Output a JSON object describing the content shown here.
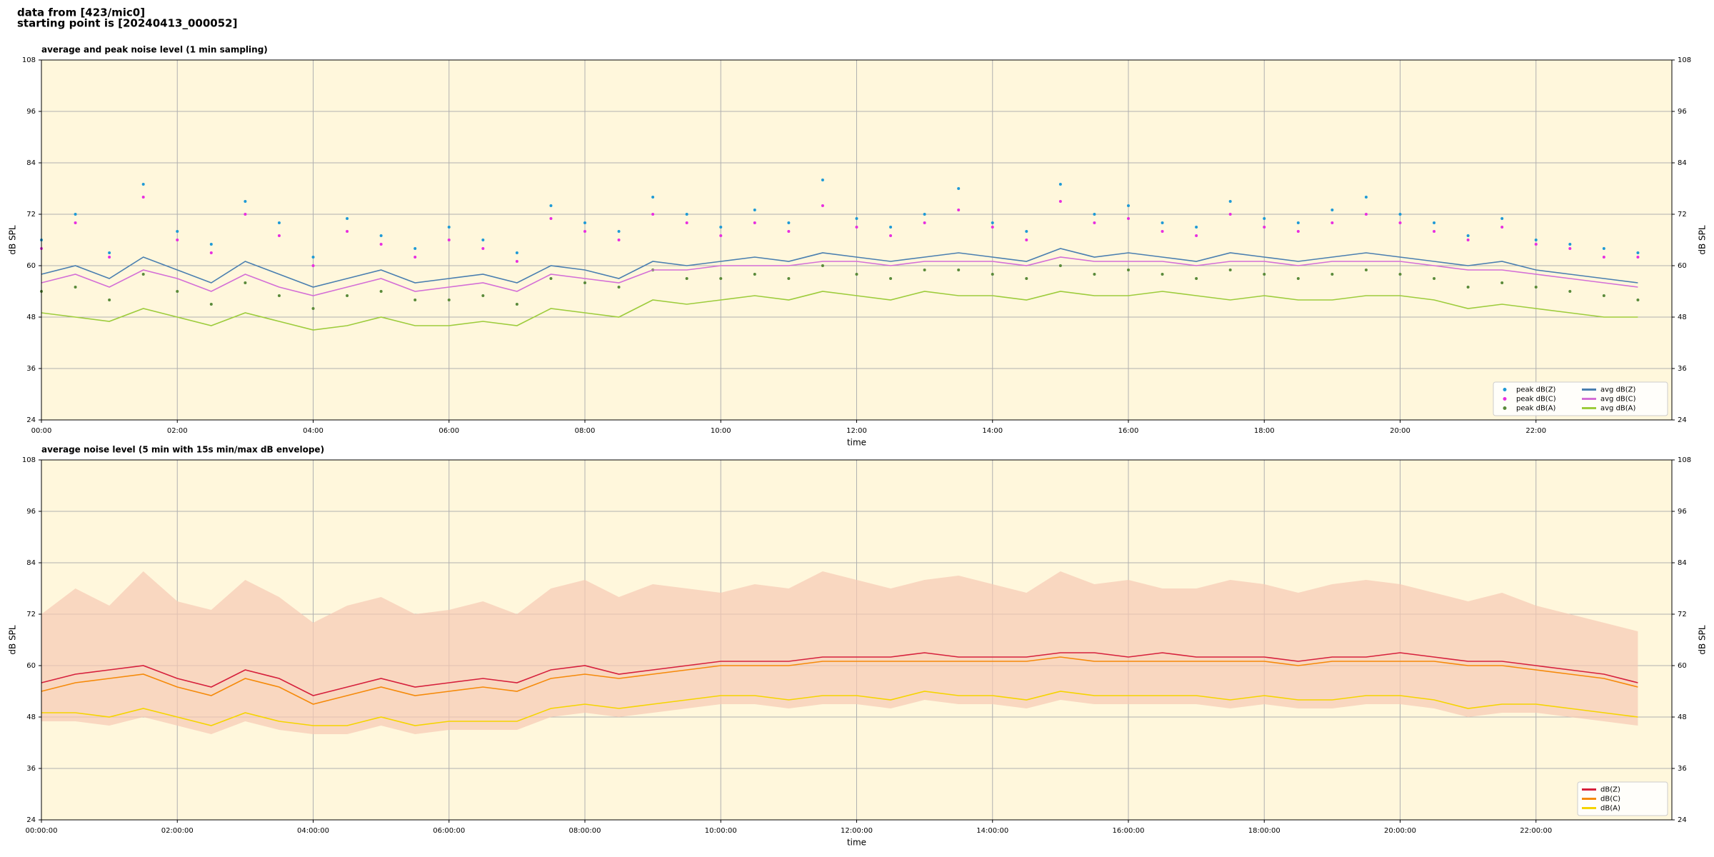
{
  "header": {
    "lines": [
      "data from [423/mic0]",
      "starting point is [20240413_000052]"
    ]
  },
  "chart_data": [
    {
      "type": "line",
      "title": "average and peak noise level (1 min sampling)",
      "x_label": "time",
      "y_label": "dB SPL",
      "background": "#fff7dc",
      "grid": true,
      "legend": "lower right",
      "legend_columns": 2,
      "xlim": [
        0,
        24
      ],
      "ylim": [
        24,
        108
      ],
      "yticks": [
        24,
        36,
        48,
        60,
        72,
        84,
        96,
        108
      ],
      "xticks": [
        {
          "value": 0,
          "label": "00:00"
        },
        {
          "value": 2,
          "label": "02:00"
        },
        {
          "value": 4,
          "label": "04:00"
        },
        {
          "value": 6,
          "label": "06:00"
        },
        {
          "value": 8,
          "label": "08:00"
        },
        {
          "value": 10,
          "label": "10:00"
        },
        {
          "value": 12,
          "label": "12:00"
        },
        {
          "value": 14,
          "label": "14:00"
        },
        {
          "value": 16,
          "label": "16:00"
        },
        {
          "value": 18,
          "label": "18:00"
        },
        {
          "value": 20,
          "label": "20:00"
        },
        {
          "value": 22,
          "label": "22:00"
        }
      ],
      "x": [
        0,
        0.5,
        1,
        1.5,
        2,
        2.5,
        3,
        3.5,
        4,
        4.5,
        5,
        5.5,
        6,
        6.5,
        7,
        7.5,
        8,
        8.5,
        9,
        9.5,
        10,
        10.5,
        11,
        11.5,
        12,
        12.5,
        13,
        13.5,
        14,
        14.5,
        15,
        15.5,
        16,
        16.5,
        17,
        17.5,
        18,
        18.5,
        19,
        19.5,
        20,
        20.5,
        21,
        21.5,
        22,
        22.5,
        23,
        23.5
      ],
      "series": [
        {
          "name": "peak dB(Z)",
          "style": "dots",
          "color": "#1f9ad6",
          "values": [
            66,
            72,
            63,
            79,
            68,
            65,
            75,
            70,
            62,
            71,
            67,
            64,
            69,
            66,
            63,
            74,
            70,
            68,
            76,
            72,
            69,
            73,
            70,
            80,
            71,
            69,
            72,
            78,
            70,
            68,
            79,
            72,
            74,
            70,
            69,
            75,
            71,
            70,
            73,
            76,
            72,
            70,
            67,
            71,
            66,
            65,
            64,
            63
          ]
        },
        {
          "name": "peak dB(C)",
          "style": "dots",
          "color": "#e82ee0",
          "values": [
            64,
            70,
            62,
            76,
            66,
            63,
            72,
            67,
            60,
            68,
            65,
            62,
            66,
            64,
            61,
            71,
            68,
            66,
            72,
            70,
            67,
            70,
            68,
            74,
            69,
            67,
            70,
            73,
            69,
            66,
            75,
            70,
            71,
            68,
            67,
            72,
            69,
            68,
            70,
            72,
            70,
            68,
            66,
            69,
            65,
            64,
            62,
            62
          ]
        },
        {
          "name": "peak dB(A)",
          "style": "dots",
          "color": "#5a8a3a",
          "values": [
            54,
            55,
            52,
            58,
            54,
            51,
            56,
            53,
            50,
            53,
            54,
            52,
            52,
            53,
            51,
            57,
            56,
            55,
            59,
            57,
            57,
            58,
            57,
            60,
            58,
            57,
            59,
            59,
            58,
            57,
            60,
            58,
            59,
            58,
            57,
            59,
            58,
            57,
            58,
            59,
            58,
            57,
            55,
            56,
            55,
            54,
            53,
            52
          ]
        },
        {
          "name": "avg dB(Z)",
          "style": "line",
          "color": "#4a7fb0",
          "values": [
            58,
            60,
            57,
            62,
            59,
            56,
            61,
            58,
            55,
            57,
            59,
            56,
            57,
            58,
            56,
            60,
            59,
            57,
            61,
            60,
            61,
            62,
            61,
            63,
            62,
            61,
            62,
            63,
            62,
            61,
            64,
            62,
            63,
            62,
            61,
            63,
            62,
            61,
            62,
            63,
            62,
            61,
            60,
            61,
            59,
            58,
            57,
            56
          ]
        },
        {
          "name": "avg dB(C)",
          "style": "line",
          "color": "#d46fd6",
          "values": [
            56,
            58,
            55,
            59,
            57,
            54,
            58,
            55,
            53,
            55,
            57,
            54,
            55,
            56,
            54,
            58,
            57,
            56,
            59,
            59,
            60,
            60,
            60,
            61,
            61,
            60,
            61,
            61,
            61,
            60,
            62,
            61,
            61,
            61,
            60,
            61,
            61,
            60,
            61,
            61,
            61,
            60,
            59,
            59,
            58,
            57,
            56,
            55
          ]
        },
        {
          "name": "avg dB(A)",
          "style": "line",
          "color": "#9dcc3c",
          "values": [
            49,
            48,
            47,
            50,
            48,
            46,
            49,
            47,
            45,
            46,
            48,
            46,
            46,
            47,
            46,
            50,
            49,
            48,
            52,
            51,
            52,
            53,
            52,
            54,
            53,
            52,
            54,
            53,
            53,
            52,
            54,
            53,
            53,
            54,
            53,
            52,
            53,
            52,
            52,
            53,
            53,
            52,
            50,
            51,
            50,
            49,
            48,
            48
          ]
        }
      ]
    },
    {
      "type": "line",
      "title": "average noise level (5 min with 15s min/max dB envelope)",
      "x_label": "time",
      "y_label": "dB SPL",
      "background": "#fff7dc",
      "grid": true,
      "legend": "lower right",
      "legend_columns": 1,
      "xlim": [
        0,
        24
      ],
      "ylim": [
        24,
        108
      ],
      "yticks": [
        24,
        36,
        48,
        60,
        72,
        84,
        96,
        108
      ],
      "xticks": [
        {
          "value": 0,
          "label": "00:00:00"
        },
        {
          "value": 2,
          "label": "02:00:00"
        },
        {
          "value": 4,
          "label": "04:00:00"
        },
        {
          "value": 6,
          "label": "06:00:00"
        },
        {
          "value": 8,
          "label": "08:00:00"
        },
        {
          "value": 10,
          "label": "10:00:00"
        },
        {
          "value": 12,
          "label": "12:00:00"
        },
        {
          "value": 14,
          "label": "14:00:00"
        },
        {
          "value": 16,
          "label": "16:00:00"
        },
        {
          "value": 18,
          "label": "18:00:00"
        },
        {
          "value": 20,
          "label": "20:00:00"
        },
        {
          "value": 22,
          "label": "22:00:00"
        }
      ],
      "x": [
        0,
        0.5,
        1,
        1.5,
        2,
        2.5,
        3,
        3.5,
        4,
        4.5,
        5,
        5.5,
        6,
        6.5,
        7,
        7.5,
        8,
        8.5,
        9,
        9.5,
        10,
        10.5,
        11,
        11.5,
        12,
        12.5,
        13,
        13.5,
        14,
        14.5,
        15,
        15.5,
        16,
        16.5,
        17,
        17.5,
        18,
        18.5,
        19,
        19.5,
        20,
        20.5,
        21,
        21.5,
        22,
        22.5,
        23,
        23.5
      ],
      "envelope": {
        "color": "#f7c9b4",
        "low": [
          47,
          47,
          46,
          48,
          46,
          44,
          47,
          45,
          44,
          44,
          46,
          44,
          45,
          45,
          45,
          48,
          49,
          48,
          49,
          50,
          51,
          51,
          50,
          51,
          51,
          50,
          52,
          51,
          51,
          50,
          52,
          51,
          51,
          51,
          51,
          50,
          51,
          50,
          50,
          51,
          51,
          50,
          48,
          49,
          49,
          48,
          47,
          46
        ],
        "high": [
          72,
          78,
          74,
          82,
          75,
          73,
          80,
          76,
          70,
          74,
          76,
          72,
          73,
          75,
          72,
          78,
          80,
          76,
          79,
          78,
          77,
          79,
          78,
          82,
          80,
          78,
          80,
          81,
          79,
          77,
          82,
          79,
          80,
          78,
          78,
          80,
          79,
          77,
          79,
          80,
          79,
          77,
          75,
          77,
          74,
          72,
          70,
          68
        ]
      },
      "series": [
        {
          "name": "dB(Z)",
          "style": "line",
          "color": "#d6203c",
          "values": [
            56,
            58,
            59,
            60,
            57,
            55,
            59,
            57,
            53,
            55,
            57,
            55,
            56,
            57,
            56,
            59,
            60,
            58,
            59,
            60,
            61,
            61,
            61,
            62,
            62,
            62,
            63,
            62,
            62,
            62,
            63,
            63,
            62,
            63,
            62,
            62,
            62,
            61,
            62,
            62,
            63,
            62,
            61,
            61,
            60,
            59,
            58,
            56
          ]
        },
        {
          "name": "dB(C)",
          "style": "line",
          "color": "#f58a0a",
          "values": [
            54,
            56,
            57,
            58,
            55,
            53,
            57,
            55,
            51,
            53,
            55,
            53,
            54,
            55,
            54,
            57,
            58,
            57,
            58,
            59,
            60,
            60,
            60,
            61,
            61,
            61,
            61,
            61,
            61,
            61,
            62,
            61,
            61,
            61,
            61,
            61,
            61,
            60,
            61,
            61,
            61,
            61,
            60,
            60,
            59,
            58,
            57,
            55
          ]
        },
        {
          "name": "dB(A)",
          "style": "line",
          "color": "#f5d400",
          "values": [
            49,
            49,
            48,
            50,
            48,
            46,
            49,
            47,
            46,
            46,
            48,
            46,
            47,
            47,
            47,
            50,
            51,
            50,
            51,
            52,
            53,
            53,
            52,
            53,
            53,
            52,
            54,
            53,
            53,
            52,
            54,
            53,
            53,
            53,
            53,
            52,
            53,
            52,
            52,
            53,
            53,
            52,
            50,
            51,
            51,
            50,
            49,
            48
          ]
        }
      ]
    }
  ]
}
